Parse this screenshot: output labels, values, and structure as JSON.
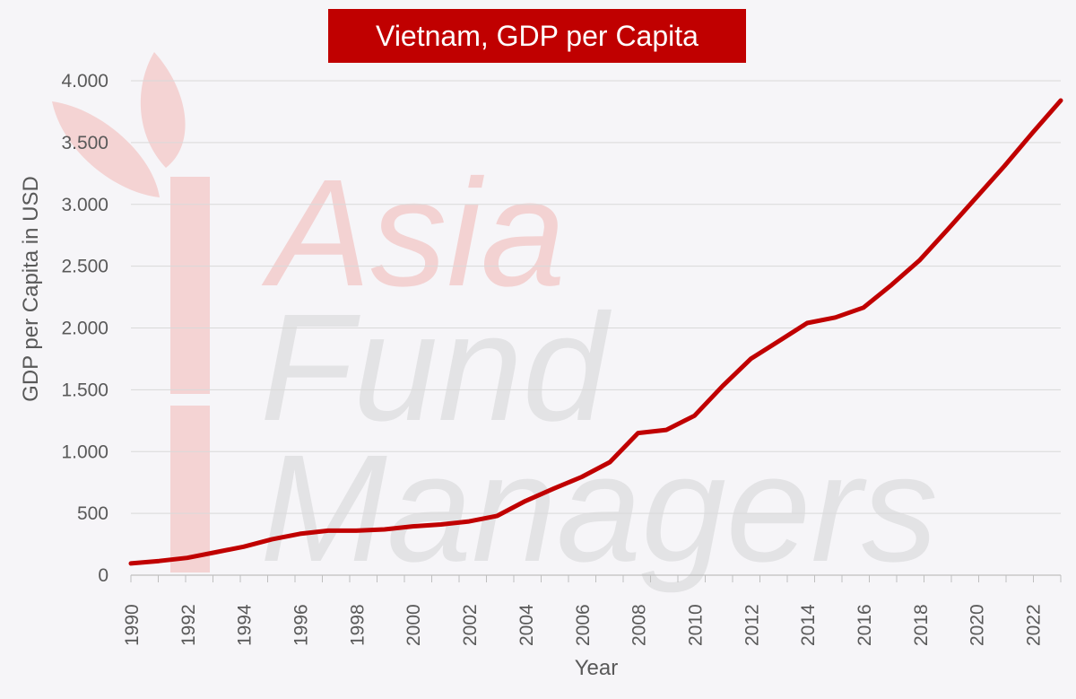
{
  "chart_data": {
    "type": "line",
    "title": "Vietnam, GDP per Capita",
    "xlabel": "Year",
    "ylabel": "GDP per Capita in USD",
    "ylim": [
      0,
      4000
    ],
    "yticks": [
      0,
      500,
      1000,
      1500,
      2000,
      2500,
      3000,
      3500,
      4000
    ],
    "ytick_labels": [
      "0",
      "500",
      "1.000",
      "1.500",
      "2.000",
      "2.500",
      "3.000",
      "3.500",
      "4.000"
    ],
    "xlim": [
      1990,
      2023
    ],
    "xticks": [
      1990,
      1992,
      1994,
      1996,
      1998,
      2000,
      2002,
      2004,
      2006,
      2008,
      2010,
      2012,
      2014,
      2016,
      2018,
      2020,
      2022
    ],
    "xtick_labels": [
      "1990",
      "1992",
      "1994",
      "1996",
      "1998",
      "2000",
      "2002",
      "2004",
      "2006",
      "2008",
      "2010",
      "2012",
      "2014",
      "2016",
      "2018",
      "2020",
      "2022"
    ],
    "grid": true,
    "legend": "none",
    "series": [
      {
        "color": "#c00000",
        "x": [
          1990,
          1991,
          1992,
          1993,
          1994,
          1995,
          1996,
          1997,
          1998,
          1999,
          2000,
          2001,
          2002,
          2003,
          2004,
          2005,
          2006,
          2007,
          2008,
          2009,
          2010,
          2011,
          2012,
          2013,
          2014,
          2015,
          2016,
          2017,
          2018,
          2019,
          2020,
          2021,
          2022,
          2023
        ],
        "values": [
          95,
          115,
          140,
          185,
          230,
          290,
          335,
          360,
          360,
          370,
          395,
          410,
          435,
          480,
          600,
          700,
          795,
          915,
          1150,
          1175,
          1290,
          1530,
          1750,
          1895,
          2040,
          2085,
          2165,
          2350,
          2550,
          2800,
          3055,
          3310,
          3580,
          3840
        ]
      }
    ]
  },
  "watermark": {
    "line1": "Asia",
    "line2": "Fund",
    "line3": "Managers"
  },
  "colors": {
    "title_bg": "#c00000",
    "line": "#c00000",
    "grid": "#d9d9d9",
    "watermark_red": "#f3cccc",
    "watermark_gray": "#e3e3e5"
  }
}
